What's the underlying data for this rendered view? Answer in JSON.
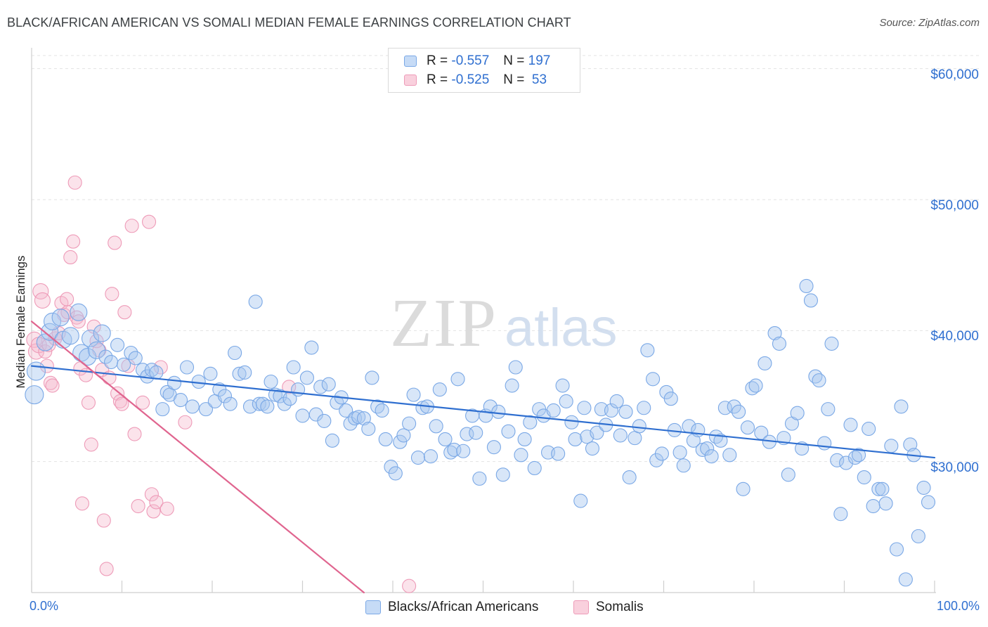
{
  "header": {
    "title": "BLACK/AFRICAN AMERICAN VS SOMALI MEDIAN FEMALE EARNINGS CORRELATION CHART",
    "source": "Source: ZipAtlas.com"
  },
  "legend": {
    "rows": [
      {
        "r_label": "R = ",
        "r_value": "-0.557",
        "n_label": "N = ",
        "n_value": "197",
        "color": "#a8c8f0"
      },
      {
        "r_label": "R = ",
        "r_value": "-0.525",
        "n_label": "N = ",
        "n_value": " 53",
        "color": "#f5b8cc"
      }
    ]
  },
  "bottom_legend": [
    {
      "label": "Blacks/African Americans",
      "color": "#a8c8f0"
    },
    {
      "label": "Somalis",
      "color": "#f5b8cc"
    }
  ],
  "chart_data": {
    "type": "scatter",
    "ylabel": "Median Female Earnings",
    "xlim": [
      0,
      100
    ],
    "ylim": [
      20000,
      61000
    ],
    "x_tick_labels": [
      "0.0%",
      "100.0%"
    ],
    "y_ticks": [
      {
        "value": 30000,
        "label": "$30,000"
      },
      {
        "value": 40000,
        "label": "$40,000"
      },
      {
        "value": 50000,
        "label": "$50,000"
      },
      {
        "value": 60000,
        "label": "$60,000"
      }
    ],
    "grid": true,
    "colors": {
      "blue": "#5b93e0",
      "blue_line": "#2f6fd0",
      "pink": "#ea7fa6",
      "pink_line": "#e0658f"
    },
    "series": [
      {
        "name": "Blacks/African Americans",
        "color": "blue",
        "trend": {
          "x0": 0,
          "y0": 37300,
          "x1": 100,
          "y1": 30300
        },
        "points": [
          [
            0.3,
            35100
          ],
          [
            0.5,
            36900
          ],
          [
            1.5,
            39100
          ],
          [
            2.0,
            39900
          ],
          [
            2.3,
            40700
          ],
          [
            3.2,
            41000
          ],
          [
            3.5,
            39300
          ],
          [
            4.3,
            39600
          ],
          [
            5.2,
            41400
          ],
          [
            5.5,
            38300
          ],
          [
            6.2,
            38000
          ],
          [
            6.5,
            39400
          ],
          [
            7.2,
            38500
          ],
          [
            7.8,
            39800
          ],
          [
            8.2,
            38000
          ],
          [
            8.8,
            37600
          ],
          [
            9.5,
            38900
          ],
          [
            10.2,
            37400
          ],
          [
            11.0,
            38300
          ],
          [
            11.5,
            37900
          ],
          [
            12.3,
            37000
          ],
          [
            12.8,
            36500
          ],
          [
            13.3,
            37000
          ],
          [
            13.8,
            36800
          ],
          [
            14.5,
            34000
          ],
          [
            15.0,
            35300
          ],
          [
            15.3,
            35100
          ],
          [
            15.8,
            36000
          ],
          [
            16.5,
            34700
          ],
          [
            17.2,
            37200
          ],
          [
            17.8,
            34200
          ],
          [
            18.5,
            36100
          ],
          [
            19.3,
            34000
          ],
          [
            19.8,
            36700
          ],
          [
            20.3,
            34600
          ],
          [
            20.8,
            35500
          ],
          [
            21.4,
            35000
          ],
          [
            22.0,
            34400
          ],
          [
            22.5,
            38300
          ],
          [
            23.0,
            36700
          ],
          [
            23.6,
            36800
          ],
          [
            24.2,
            34200
          ],
          [
            24.8,
            42200
          ],
          [
            25.2,
            34400
          ],
          [
            25.6,
            34400
          ],
          [
            26.1,
            34200
          ],
          [
            26.5,
            36100
          ],
          [
            27.0,
            35100
          ],
          [
            27.5,
            35000
          ],
          [
            28.0,
            34400
          ],
          [
            28.6,
            34800
          ],
          [
            29.0,
            37200
          ],
          [
            29.5,
            35500
          ],
          [
            30.0,
            33500
          ],
          [
            30.5,
            36400
          ],
          [
            31.0,
            38700
          ],
          [
            31.5,
            33600
          ],
          [
            32.0,
            35700
          ],
          [
            32.4,
            33100
          ],
          [
            32.9,
            35900
          ],
          [
            33.3,
            31600
          ],
          [
            33.8,
            34500
          ],
          [
            34.3,
            34900
          ],
          [
            34.8,
            33900
          ],
          [
            35.3,
            32900
          ],
          [
            35.8,
            33300
          ],
          [
            36.2,
            33400
          ],
          [
            36.8,
            33300
          ],
          [
            37.3,
            32500
          ],
          [
            37.7,
            36400
          ],
          [
            38.3,
            34200
          ],
          [
            38.8,
            33900
          ],
          [
            39.2,
            31700
          ],
          [
            39.8,
            29600
          ],
          [
            40.3,
            29100
          ],
          [
            40.8,
            31500
          ],
          [
            41.2,
            32000
          ],
          [
            41.8,
            32900
          ],
          [
            42.3,
            35100
          ],
          [
            42.8,
            30300
          ],
          [
            43.3,
            34100
          ],
          [
            43.8,
            34200
          ],
          [
            44.2,
            30400
          ],
          [
            44.8,
            32700
          ],
          [
            45.2,
            35500
          ],
          [
            45.8,
            31700
          ],
          [
            46.4,
            30700
          ],
          [
            46.8,
            30900
          ],
          [
            47.2,
            36300
          ],
          [
            47.8,
            30800
          ],
          [
            48.2,
            32100
          ],
          [
            48.8,
            33500
          ],
          [
            49.2,
            32200
          ],
          [
            49.6,
            28700
          ],
          [
            50.3,
            33500
          ],
          [
            50.8,
            34200
          ],
          [
            51.2,
            31100
          ],
          [
            51.7,
            33800
          ],
          [
            52.2,
            29000
          ],
          [
            52.8,
            32300
          ],
          [
            53.2,
            35800
          ],
          [
            53.6,
            37200
          ],
          [
            54.2,
            30500
          ],
          [
            54.6,
            31700
          ],
          [
            55.2,
            33000
          ],
          [
            55.7,
            29500
          ],
          [
            56.2,
            34000
          ],
          [
            56.7,
            33500
          ],
          [
            57.2,
            30700
          ],
          [
            57.8,
            33900
          ],
          [
            58.3,
            30600
          ],
          [
            58.8,
            35800
          ],
          [
            59.2,
            34600
          ],
          [
            59.8,
            33000
          ],
          [
            60.2,
            31700
          ],
          [
            60.8,
            27000
          ],
          [
            61.2,
            34100
          ],
          [
            61.5,
            31900
          ],
          [
            62.1,
            31000
          ],
          [
            62.6,
            32200
          ],
          [
            63.1,
            34000
          ],
          [
            63.6,
            32800
          ],
          [
            64.2,
            33900
          ],
          [
            64.8,
            34600
          ],
          [
            65.2,
            32000
          ],
          [
            65.8,
            33800
          ],
          [
            66.2,
            28800
          ],
          [
            66.8,
            31800
          ],
          [
            67.3,
            32700
          ],
          [
            67.8,
            34100
          ],
          [
            68.2,
            38500
          ],
          [
            68.8,
            36300
          ],
          [
            69.2,
            30100
          ],
          [
            69.8,
            30600
          ],
          [
            70.3,
            35300
          ],
          [
            70.8,
            34800
          ],
          [
            71.2,
            32400
          ],
          [
            71.8,
            30700
          ],
          [
            72.2,
            29700
          ],
          [
            72.8,
            32700
          ],
          [
            73.3,
            31600
          ],
          [
            73.8,
            32400
          ],
          [
            74.3,
            30900
          ],
          [
            74.8,
            31000
          ],
          [
            75.3,
            30400
          ],
          [
            75.8,
            31900
          ],
          [
            76.3,
            31600
          ],
          [
            76.8,
            34100
          ],
          [
            77.3,
            30500
          ],
          [
            77.8,
            34200
          ],
          [
            78.3,
            33800
          ],
          [
            78.8,
            27900
          ],
          [
            79.3,
            32600
          ],
          [
            79.8,
            35600
          ],
          [
            80.2,
            35800
          ],
          [
            80.8,
            32200
          ],
          [
            81.2,
            37500
          ],
          [
            81.7,
            31500
          ],
          [
            82.3,
            39800
          ],
          [
            82.8,
            39000
          ],
          [
            83.3,
            31800
          ],
          [
            83.8,
            29000
          ],
          [
            84.2,
            32900
          ],
          [
            84.8,
            33700
          ],
          [
            85.3,
            31000
          ],
          [
            85.8,
            43400
          ],
          [
            86.3,
            42300
          ],
          [
            86.8,
            36500
          ],
          [
            87.2,
            36200
          ],
          [
            87.8,
            31400
          ],
          [
            88.2,
            34000
          ],
          [
            88.6,
            39000
          ],
          [
            89.2,
            30100
          ],
          [
            89.6,
            26000
          ],
          [
            90.2,
            29900
          ],
          [
            90.7,
            32800
          ],
          [
            91.2,
            30300
          ],
          [
            91.6,
            30500
          ],
          [
            92.2,
            28800
          ],
          [
            92.7,
            32500
          ],
          [
            93.2,
            26600
          ],
          [
            93.8,
            27900
          ],
          [
            94.2,
            27900
          ],
          [
            94.6,
            26800
          ],
          [
            95.2,
            31200
          ],
          [
            95.8,
            23300
          ],
          [
            96.3,
            34200
          ],
          [
            96.8,
            21000
          ],
          [
            97.3,
            31300
          ],
          [
            97.7,
            30500
          ],
          [
            98.2,
            24300
          ],
          [
            98.8,
            28000
          ],
          [
            99.3,
            26900
          ]
        ]
      },
      {
        "name": "Somalis",
        "color": "pink",
        "trend": {
          "x0": 0,
          "y0": 40700,
          "x1": 36.8,
          "y1": 20000
        },
        "points": [
          [
            0.3,
            39300
          ],
          [
            0.5,
            38400
          ],
          [
            0.8,
            38900
          ],
          [
            1.0,
            43000
          ],
          [
            1.2,
            42300
          ],
          [
            1.5,
            38400
          ],
          [
            1.7,
            37300
          ],
          [
            1.9,
            38900
          ],
          [
            2.1,
            36000
          ],
          [
            2.3,
            35800
          ],
          [
            2.6,
            39400
          ],
          [
            3.0,
            39800
          ],
          [
            3.3,
            42100
          ],
          [
            3.6,
            41200
          ],
          [
            3.9,
            42400
          ],
          [
            4.0,
            41400
          ],
          [
            4.3,
            45600
          ],
          [
            4.6,
            46800
          ],
          [
            4.8,
            51300
          ],
          [
            5.0,
            41000
          ],
          [
            5.2,
            40700
          ],
          [
            5.4,
            37100
          ],
          [
            5.6,
            26800
          ],
          [
            6.0,
            36600
          ],
          [
            6.3,
            34500
          ],
          [
            6.6,
            31300
          ],
          [
            6.9,
            40300
          ],
          [
            7.2,
            39200
          ],
          [
            7.5,
            38500
          ],
          [
            7.8,
            37000
          ],
          [
            8.0,
            25500
          ],
          [
            8.3,
            21800
          ],
          [
            8.6,
            36400
          ],
          [
            8.9,
            42800
          ],
          [
            9.2,
            46700
          ],
          [
            9.5,
            35200
          ],
          [
            9.8,
            34600
          ],
          [
            10.0,
            34400
          ],
          [
            10.3,
            41400
          ],
          [
            10.7,
            37300
          ],
          [
            11.1,
            48000
          ],
          [
            11.4,
            32100
          ],
          [
            11.8,
            26600
          ],
          [
            12.3,
            34500
          ],
          [
            13.0,
            48300
          ],
          [
            13.3,
            27500
          ],
          [
            13.5,
            26200
          ],
          [
            13.8,
            26900
          ],
          [
            14.3,
            37200
          ],
          [
            15.0,
            26400
          ],
          [
            17.0,
            33000
          ],
          [
            28.5,
            35700
          ],
          [
            41.8,
            20500
          ]
        ]
      }
    ]
  }
}
